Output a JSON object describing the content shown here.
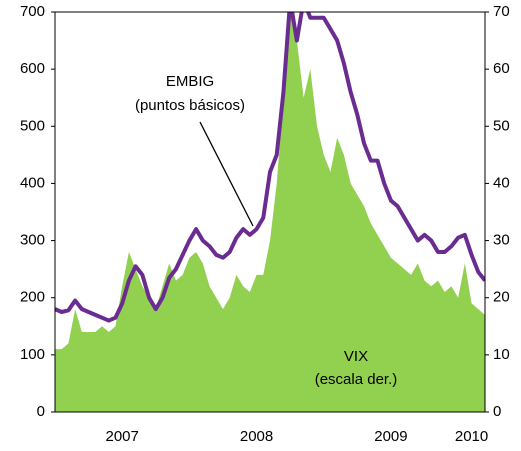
{
  "chart_data": {
    "type": "line",
    "x": [
      2007,
      2007.05,
      2007.1,
      2007.15,
      2007.2,
      2007.25,
      2007.3,
      2007.35,
      2007.4,
      2007.45,
      2007.5,
      2007.55,
      2007.6,
      2007.65,
      2007.7,
      2007.75,
      2007.8,
      2007.85,
      2007.9,
      2007.95,
      2008,
      2008.05,
      2008.1,
      2008.15,
      2008.2,
      2008.25,
      2008.3,
      2008.35,
      2008.4,
      2008.45,
      2008.5,
      2008.55,
      2008.6,
      2008.65,
      2008.7,
      2008.75,
      2008.8,
      2008.85,
      2008.9,
      2008.95,
      2009,
      2009.05,
      2009.1,
      2009.15,
      2009.2,
      2009.25,
      2009.3,
      2009.35,
      2009.4,
      2009.45,
      2009.5,
      2009.55,
      2009.6,
      2009.65,
      2009.7,
      2009.75,
      2009.8,
      2009.85,
      2009.9,
      2009.95,
      2010,
      2010.05,
      2010.1,
      2010.15,
      2010.2
    ],
    "series": [
      {
        "name": "VIX",
        "type": "area",
        "axis": "y2",
        "color": "#92d050",
        "values": [
          11,
          11,
          12,
          18,
          14,
          14,
          14,
          15,
          14,
          15,
          22,
          28,
          25,
          22,
          20,
          18,
          22,
          26,
          23,
          24,
          27,
          28,
          26,
          22,
          20,
          18,
          20,
          24,
          22,
          21,
          24,
          24,
          30,
          40,
          55,
          78,
          65,
          55,
          60,
          50,
          45,
          42,
          48,
          45,
          40,
          38,
          36,
          33,
          31,
          29,
          27,
          26,
          25,
          24,
          26,
          23,
          22,
          23,
          21,
          22,
          20,
          26,
          19,
          18,
          17
        ]
      },
      {
        "name": "EMBIG",
        "type": "line",
        "color": "#6a2c91",
        "values": [
          180,
          175,
          178,
          195,
          180,
          175,
          170,
          165,
          160,
          165,
          190,
          230,
          255,
          240,
          200,
          180,
          200,
          235,
          250,
          275,
          300,
          320,
          300,
          290,
          275,
          270,
          280,
          305,
          320,
          310,
          320,
          340,
          420,
          450,
          560,
          720,
          650,
          720,
          690,
          690,
          690,
          670,
          650,
          610,
          560,
          520,
          470,
          440,
          440,
          400,
          370,
          360,
          340,
          320,
          300,
          310,
          300,
          280,
          280,
          290,
          305,
          310,
          275,
          245,
          230
        ]
      }
    ],
    "annotations": [
      {
        "lines": [
          "EMBIG",
          "(puntos básicos)"
        ]
      },
      {
        "lines": [
          "VIX",
          "(escala der.)"
        ]
      }
    ],
    "xlim": [
      2007,
      2010.2
    ],
    "xticks": [
      {
        "value": 2007.5,
        "label": "2007"
      },
      {
        "value": 2008.5,
        "label": "2008"
      },
      {
        "value": 2009.5,
        "label": "2009"
      },
      {
        "value": 2010.1,
        "label": "2010"
      }
    ],
    "ylim": [
      0,
      700
    ],
    "yticks": [
      0,
      100,
      200,
      300,
      400,
      500,
      600,
      700
    ],
    "y2lim": [
      0,
      70
    ],
    "y2ticks": [
      0,
      10,
      20,
      30,
      40,
      50,
      60,
      70
    ]
  }
}
